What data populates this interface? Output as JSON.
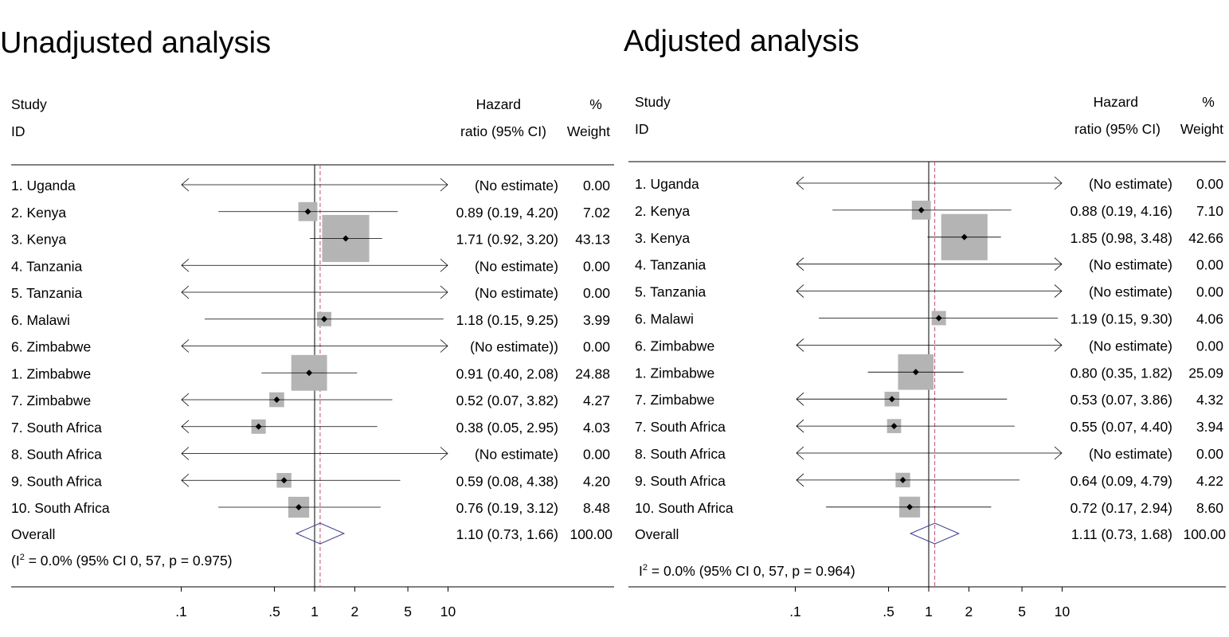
{
  "chart_data": [
    {
      "type": "forest",
      "title": "Unadjusted analysis",
      "header": {
        "study": "Study",
        "id": "ID",
        "hr_line1": "Hazard",
        "hr_line2": "ratio (95% CI)",
        "wt_line1": "%",
        "wt_line2": "Weight"
      },
      "x_scale": "log",
      "x_range": [
        0.1,
        10
      ],
      "x_ticks": [
        0.1,
        0.5,
        1,
        2,
        5,
        10
      ],
      "x_tick_labels": [
        ".1",
        ".5",
        "1",
        "2",
        "5",
        "10"
      ],
      "null_line": 1,
      "overall_line": 1.1,
      "rows": [
        {
          "label": "1. Uganda",
          "hr": null,
          "lo": null,
          "hi": null,
          "weight": 0,
          "ci_text": "(No estimate)",
          "weight_text": "0.00"
        },
        {
          "label": "2. Kenya",
          "hr": 0.89,
          "lo": 0.19,
          "hi": 4.2,
          "weight": 7.02,
          "ci_text": "0.89 (0.19, 4.20)",
          "weight_text": "7.02"
        },
        {
          "label": "3. Kenya",
          "hr": 1.71,
          "lo": 0.92,
          "hi": 3.2,
          "weight": 43.13,
          "ci_text": "1.71 (0.92, 3.20)",
          "weight_text": "43.13"
        },
        {
          "label": "4. Tanzania",
          "hr": null,
          "lo": null,
          "hi": null,
          "weight": 0,
          "ci_text": "(No estimate)",
          "weight_text": "0.00"
        },
        {
          "label": "5. Tanzania",
          "hr": null,
          "lo": null,
          "hi": null,
          "weight": 0,
          "ci_text": "(No estimate)",
          "weight_text": "0.00"
        },
        {
          "label": "6. Malawi",
          "hr": 1.18,
          "lo": 0.15,
          "hi": 9.25,
          "weight": 3.99,
          "ci_text": "1.18 (0.15, 9.25)",
          "weight_text": "3.99"
        },
        {
          "label": "6. Zimbabwe",
          "hr": null,
          "lo": null,
          "hi": null,
          "weight": 0,
          "ci_text": "(No estimate))",
          "weight_text": "0.00"
        },
        {
          "label": "1. Zimbabwe",
          "hr": 0.91,
          "lo": 0.4,
          "hi": 2.08,
          "weight": 24.88,
          "ci_text": "0.91 (0.40, 2.08)",
          "weight_text": "24.88"
        },
        {
          "label": "7. Zimbabwe",
          "hr": 0.52,
          "lo": 0.07,
          "hi": 3.82,
          "weight": 4.27,
          "ci_text": "0.52 (0.07, 3.82)",
          "weight_text": "4.27"
        },
        {
          "label": "7. South Africa",
          "hr": 0.38,
          "lo": 0.05,
          "hi": 2.95,
          "weight": 4.03,
          "ci_text": "0.38 (0.05, 2.95)",
          "weight_text": "4.03"
        },
        {
          "label": "8. South Africa",
          "hr": null,
          "lo": null,
          "hi": null,
          "weight": 0,
          "ci_text": "(No estimate)",
          "weight_text": "0.00"
        },
        {
          "label": "9. South Africa",
          "hr": 0.59,
          "lo": 0.08,
          "hi": 4.38,
          "weight": 4.2,
          "ci_text": "0.59 (0.08, 4.38)",
          "weight_text": "4.20"
        },
        {
          "label": "10. South Africa",
          "hr": 0.76,
          "lo": 0.19,
          "hi": 3.12,
          "weight": 8.48,
          "ci_text": "0.76 (0.19, 3.12)",
          "weight_text": "8.48"
        }
      ],
      "overall": {
        "label": "Overall",
        "hr": 1.1,
        "lo": 0.73,
        "hi": 1.66,
        "ci_text": "1.10 (0.73, 1.66)",
        "weight_text": "100.00"
      },
      "heterogeneity": {
        "pre": "(I",
        "sup": "2",
        "post": " = 0.0% (95% CI 0, 57, p = 0.975)"
      }
    },
    {
      "type": "forest",
      "title": "Adjusted analysis",
      "header": {
        "study": "Study",
        "id": "ID",
        "hr_line1": "Hazard",
        "hr_line2": "ratio (95% CI)",
        "wt_line1": "%",
        "wt_line2": "Weight"
      },
      "x_scale": "log",
      "x_range": [
        0.1,
        10
      ],
      "x_ticks": [
        0.1,
        0.5,
        1,
        2,
        5,
        10
      ],
      "x_tick_labels": [
        ".1",
        ".5",
        "1",
        "2",
        "5",
        "10"
      ],
      "null_line": 1,
      "overall_line": 1.11,
      "rows": [
        {
          "label": "1. Uganda",
          "hr": null,
          "lo": null,
          "hi": null,
          "weight": 0,
          "ci_text": "(No estimate)",
          "weight_text": "0.00"
        },
        {
          "label": "2. Kenya",
          "hr": 0.88,
          "lo": 0.19,
          "hi": 4.16,
          "weight": 7.1,
          "ci_text": "0.88 (0.19, 4.16)",
          "weight_text": "7.10"
        },
        {
          "label": "3. Kenya",
          "hr": 1.85,
          "lo": 0.98,
          "hi": 3.48,
          "weight": 42.66,
          "ci_text": "1.85 (0.98, 3.48)",
          "weight_text": "42.66"
        },
        {
          "label": "4. Tanzania",
          "hr": null,
          "lo": null,
          "hi": null,
          "weight": 0,
          "ci_text": "(No estimate)",
          "weight_text": "0.00"
        },
        {
          "label": "5. Tanzania",
          "hr": null,
          "lo": null,
          "hi": null,
          "weight": 0,
          "ci_text": "(No estimate)",
          "weight_text": "0.00"
        },
        {
          "label": "6. Malawi",
          "hr": 1.19,
          "lo": 0.15,
          "hi": 9.3,
          "weight": 4.06,
          "ci_text": "1.19 (0.15, 9.30)",
          "weight_text": "4.06"
        },
        {
          "label": "6. Zimbabwe",
          "hr": null,
          "lo": null,
          "hi": null,
          "weight": 0,
          "ci_text": "(No estimate)",
          "weight_text": "0.00"
        },
        {
          "label": "1. Zimbabwe",
          "hr": 0.8,
          "lo": 0.35,
          "hi": 1.82,
          "weight": 25.09,
          "ci_text": "0.80 (0.35, 1.82)",
          "weight_text": "25.09"
        },
        {
          "label": "7. Zimbabwe",
          "hr": 0.53,
          "lo": 0.07,
          "hi": 3.86,
          "weight": 4.32,
          "ci_text": "0.53 (0.07, 3.86)",
          "weight_text": "4.32"
        },
        {
          "label": "7. South Africa",
          "hr": 0.55,
          "lo": 0.07,
          "hi": 4.4,
          "weight": 3.94,
          "ci_text": "0.55 (0.07, 4.40)",
          "weight_text": "3.94"
        },
        {
          "label": "8. South Africa",
          "hr": null,
          "lo": null,
          "hi": null,
          "weight": 0,
          "ci_text": "(No estimate)",
          "weight_text": "0.00"
        },
        {
          "label": "9. South Africa",
          "hr": 0.64,
          "lo": 0.09,
          "hi": 4.79,
          "weight": 4.22,
          "ci_text": "0.64 (0.09, 4.79)",
          "weight_text": "4.22"
        },
        {
          "label": "10. South Africa",
          "hr": 0.72,
          "lo": 0.17,
          "hi": 2.94,
          "weight": 8.6,
          "ci_text": "0.72 (0.17, 2.94)",
          "weight_text": "8.60"
        }
      ],
      "overall": {
        "label": "Overall",
        "hr": 1.11,
        "lo": 0.73,
        "hi": 1.68,
        "ci_text": "1.11 (0.73, 1.68)",
        "weight_text": "100.00"
      },
      "heterogeneity": {
        "pre": "I",
        "sup": "2",
        "post": " = 0.0% (95% CI 0, 57, p = 0.964)"
      }
    }
  ],
  "colors": {
    "box": "#b4b4b4",
    "line": "#000000",
    "overall_line": "#c05070",
    "diamond": "#3a3a8c"
  }
}
